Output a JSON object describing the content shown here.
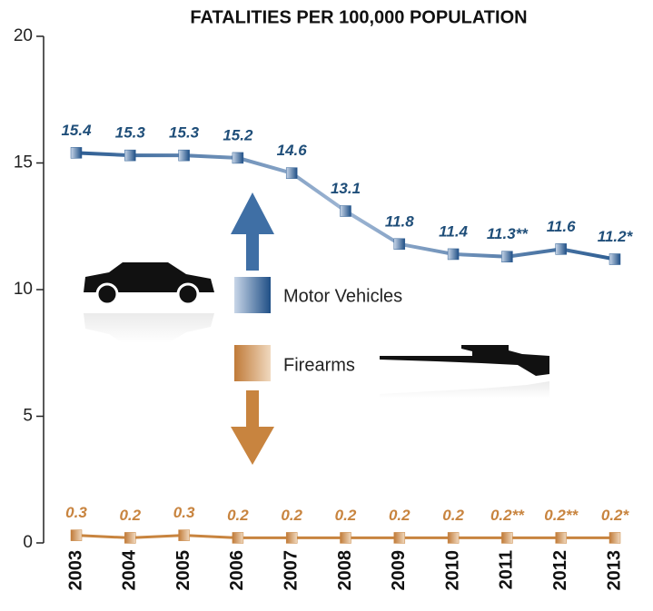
{
  "chart_data": {
    "type": "line",
    "title": "FATALITIES PER 100,000 POPULATION",
    "categories": [
      "2003",
      "2004",
      "2005",
      "2006",
      "2007",
      "2008",
      "2009",
      "2010",
      "2011",
      "2012",
      "2013"
    ],
    "series": [
      {
        "name": "Motor Vehicles",
        "color": "#2f5f94",
        "values": [
          15.4,
          15.3,
          15.3,
          15.2,
          14.6,
          13.1,
          11.8,
          11.4,
          11.3,
          11.6,
          11.2
        ],
        "value_labels": [
          "15.4",
          "15.3",
          "15.3",
          "15.2",
          "14.6",
          "13.1",
          "11.8",
          "11.4",
          "11.3**",
          "11.6",
          "11.2*"
        ]
      },
      {
        "name": "Firearms",
        "color": "#c8843f",
        "values": [
          0.3,
          0.2,
          0.3,
          0.2,
          0.2,
          0.2,
          0.2,
          0.2,
          0.2,
          0.2,
          0.2
        ],
        "value_labels": [
          "0.3",
          "0.2",
          "0.3",
          "0.2",
          "0.2",
          "0.2",
          "0.2",
          "0.2",
          "0.2**",
          "0.2**",
          "0.2*"
        ]
      }
    ],
    "ylim": [
      0,
      20
    ],
    "yticks": [
      0,
      5,
      10,
      15,
      20
    ],
    "grid": false
  }
}
